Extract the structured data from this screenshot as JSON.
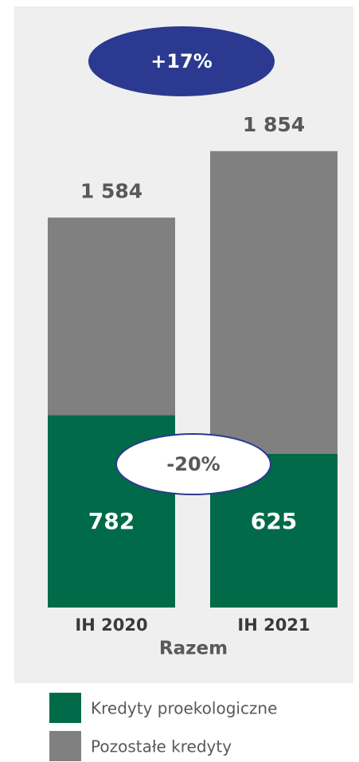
{
  "chart_data": {
    "type": "stacked_bar",
    "categories": [
      "IH 2020",
      "IH 2021"
    ],
    "x_label": "Razem",
    "series": [
      {
        "name": "Kredyty proekologiczne",
        "color": "#006a49",
        "values": [
          782,
          625
        ]
      },
      {
        "name": "Pozostałe kredyty",
        "color": "#808080",
        "values": [
          802,
          1229
        ]
      }
    ],
    "totals": [
      1584,
      1854
    ],
    "total_labels": [
      "1 584",
      "1 854"
    ],
    "annotations": [
      "+17%",
      "-20%"
    ],
    "ylim": [
      0,
      2400
    ]
  }
}
